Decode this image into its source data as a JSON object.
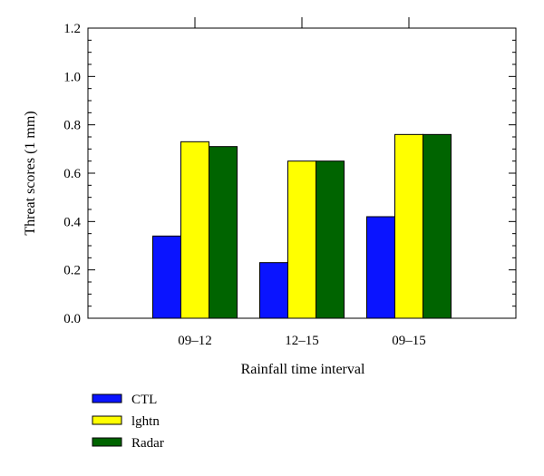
{
  "chart_data": {
    "type": "bar",
    "title": "",
    "xlabel": "Rainfall time interval",
    "ylabel": "Threat scores (1 mm)",
    "categories": [
      "09–12",
      "12–15",
      "09–15"
    ],
    "series": [
      {
        "name": "CTL",
        "values": [
          0.34,
          0.23,
          0.42
        ],
        "color": "#0a14ff"
      },
      {
        "name": "lghtn",
        "values": [
          0.73,
          0.65,
          0.76
        ],
        "color": "#ffff00"
      },
      {
        "name": "Radar",
        "values": [
          0.71,
          0.65,
          0.76
        ],
        "color": "#006400"
      }
    ],
    "ylim": [
      0,
      1.2
    ],
    "yticks": [
      "0.0",
      "0.2",
      "0.4",
      "0.6",
      "0.8",
      "1.0",
      "1.2"
    ],
    "grid": false,
    "legend_position": "bottom-left"
  }
}
